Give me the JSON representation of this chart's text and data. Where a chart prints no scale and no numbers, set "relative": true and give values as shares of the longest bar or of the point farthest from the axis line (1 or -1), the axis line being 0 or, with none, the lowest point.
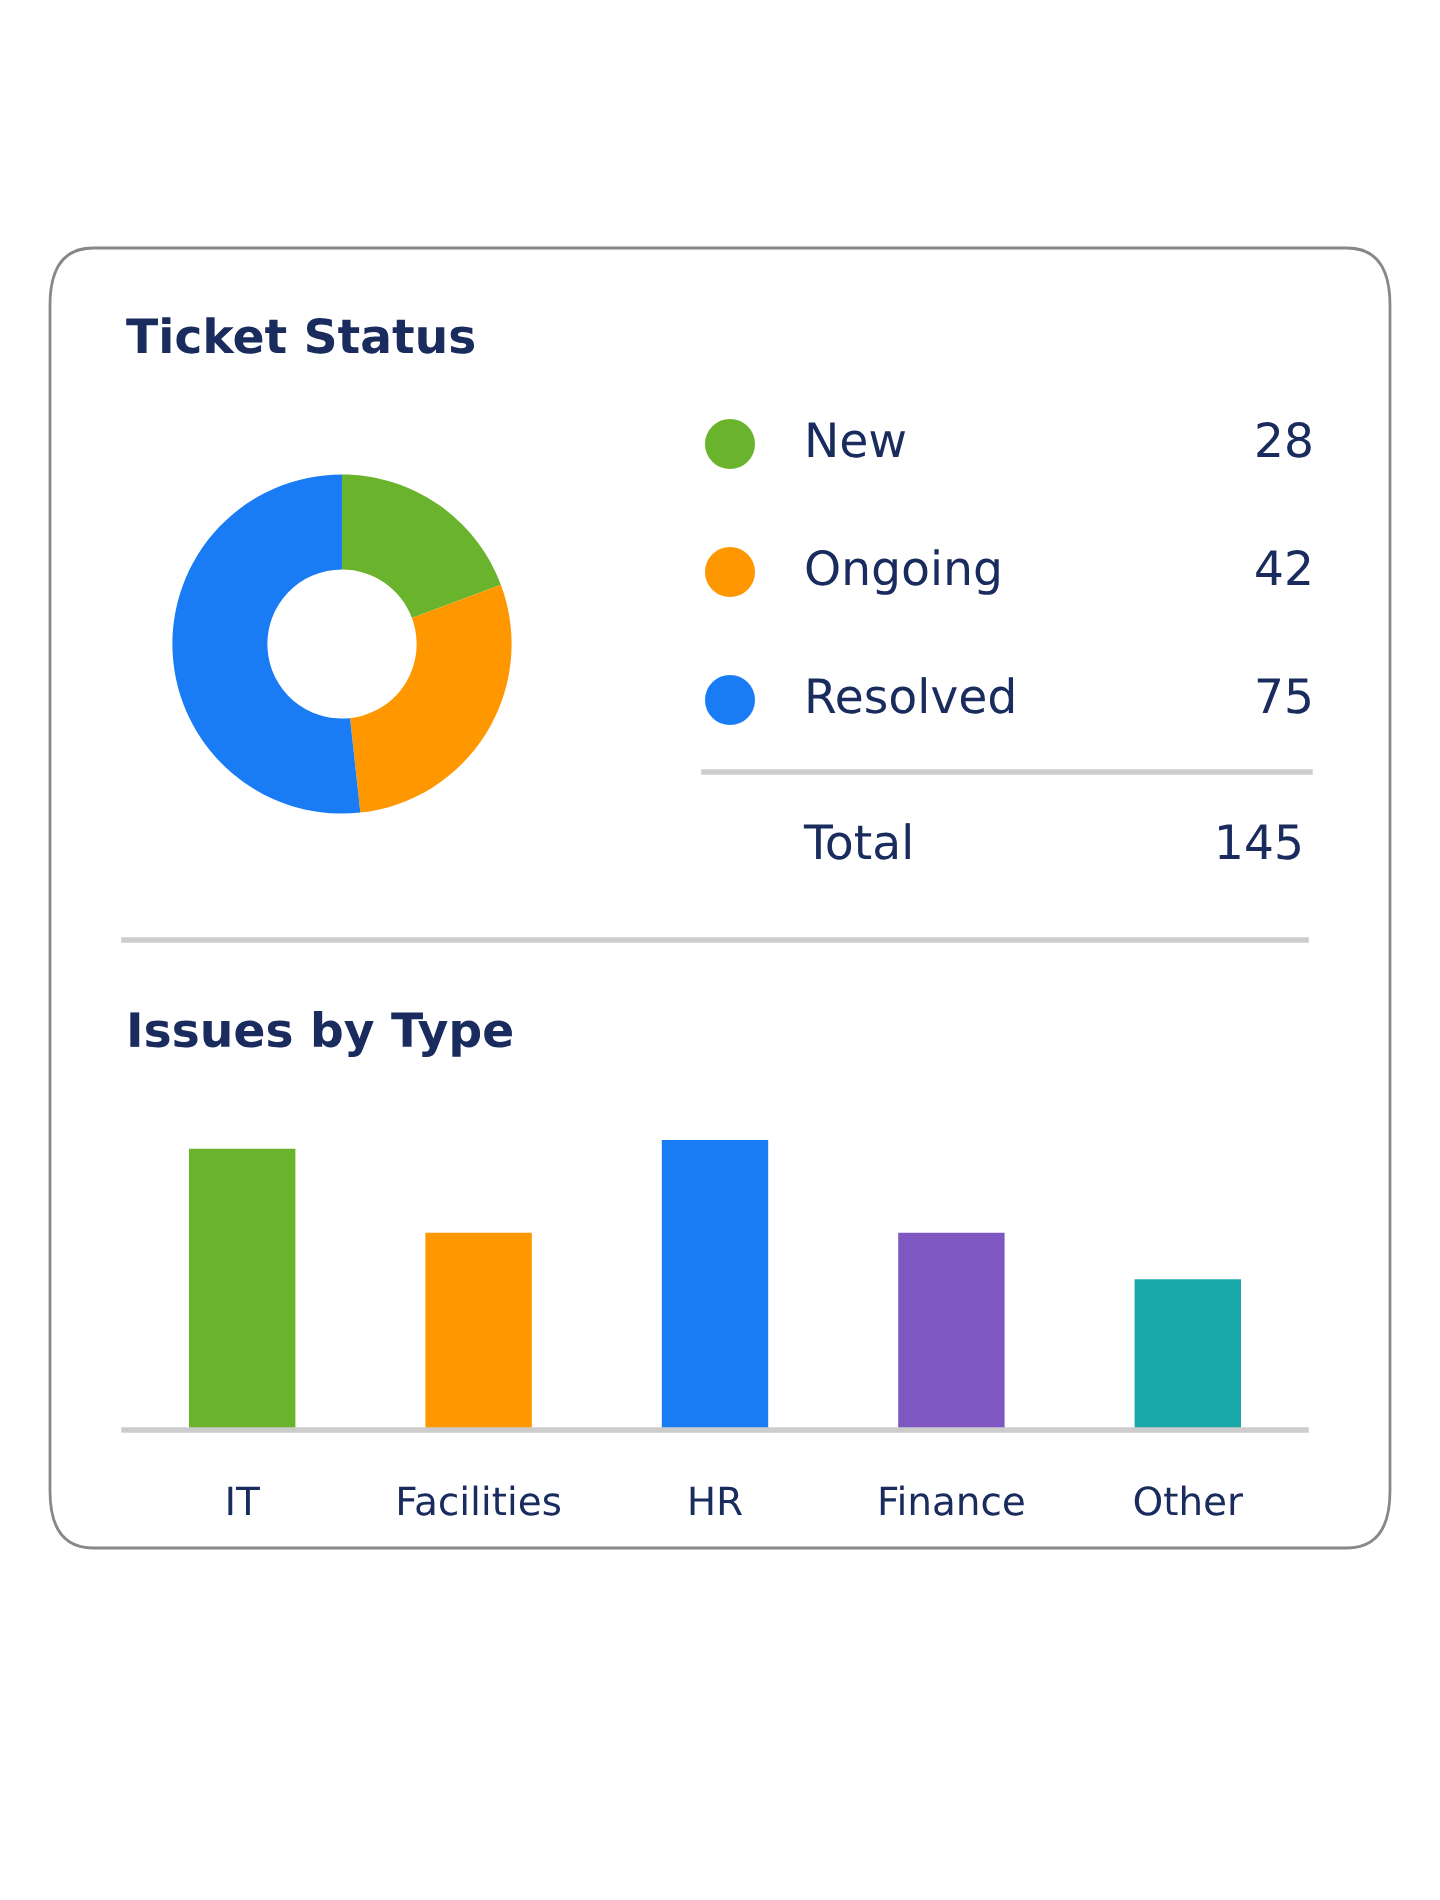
{
  "chart_data": [
    {
      "type": "donut",
      "title": "Ticket Status",
      "categories": [
        "New",
        "Ongoing",
        "Resolved"
      ],
      "values": [
        28,
        42,
        75
      ],
      "colors": [
        "#6ab42d",
        "#ff9800",
        "#1a7cf5"
      ],
      "legend": "right",
      "data_labels": true,
      "annotations": [
        "Total",
        "145"
      ]
    },
    {
      "type": "bar",
      "title": "Issues by Type",
      "categories": [
        "IT",
        "Facilities",
        "HR",
        "Finance",
        "Other"
      ],
      "relative": true,
      "values": [
        0.97,
        0.68,
        1,
        0.68,
        0.52
      ],
      "colors": [
        "#6ab42d",
        "#ff9800",
        "#1a7cf5",
        "#7e57c2",
        "#1aa8a8"
      ],
      "tick_labels": "x"
    }
  ]
}
